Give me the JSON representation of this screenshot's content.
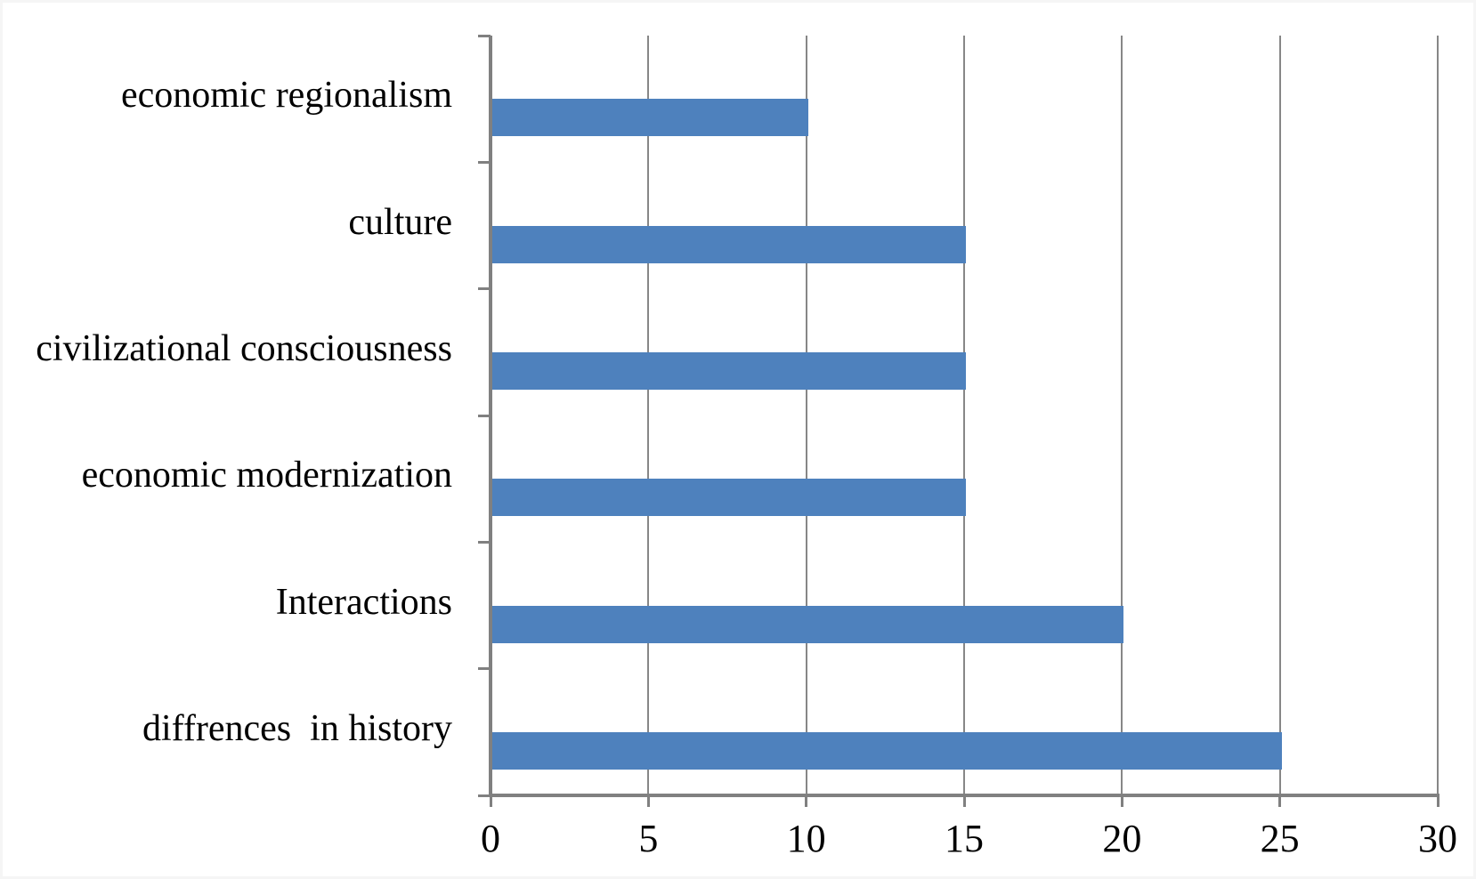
{
  "figure": {
    "title": "",
    "background": "#FFFFFF"
  },
  "chart_data": {
    "type": "bar",
    "orientation": "horizontal",
    "title": "",
    "xlabel": "",
    "ylabel": "",
    "categories": [
      "economic regionalism",
      "culture",
      "civilizational consciousness",
      "economic modernization",
      "Interactions",
      "diffrences  in history"
    ],
    "values": [
      10,
      15,
      15,
      15,
      20,
      25
    ],
    "xlim": [
      0,
      30
    ],
    "xticks": [
      "0",
      "5",
      "10",
      "15",
      "20",
      "25",
      "30"
    ],
    "grid": "vertical",
    "legend": false
  },
  "colors": {
    "bar": "#4E81BD",
    "gridline": "#878787",
    "axis": "#808080",
    "text": "#000000",
    "background": "#FFFFFF"
  }
}
